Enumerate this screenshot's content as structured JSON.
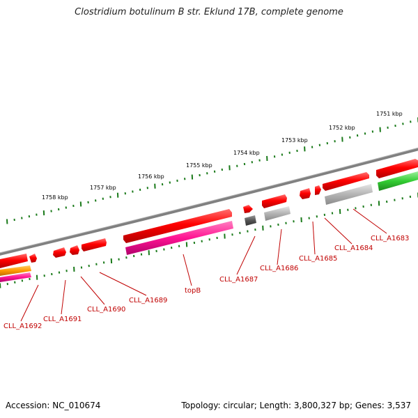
{
  "title": "Clostridium botulinum B str. Eklund 17B, complete genome",
  "footer": {
    "accession": "Accession: NC_010674",
    "stats": "Topology: circular; Length: 3,800,327 bp; Genes: 3,537"
  },
  "scale_labels": [
    "1751 kbp",
    "1752 kbp",
    "1753 kbp",
    "1754 kbp",
    "1755 kbp",
    "1756 kbp",
    "1757 kbp",
    "1758 kbp"
  ],
  "gene_labels": [
    "CLL_A1683",
    "CLL_A1684",
    "CLL_A1685",
    "CLL_A1686",
    "CLL_A1687",
    "topB",
    "CLL_A1689",
    "CLL_A1690",
    "CLL_A1691",
    "CLL_A1692"
  ],
  "colors": {
    "backbone": "#808080",
    "scale": "#1a7a1a",
    "gene_red": "#ff0000",
    "gene_magenta": "#ff1493",
    "gene_gray": "#b4b4b4",
    "gene_darkgray": "#555555",
    "gene_green": "#33cc33",
    "gene_orange": "#ff9900",
    "label": "#c00000"
  }
}
